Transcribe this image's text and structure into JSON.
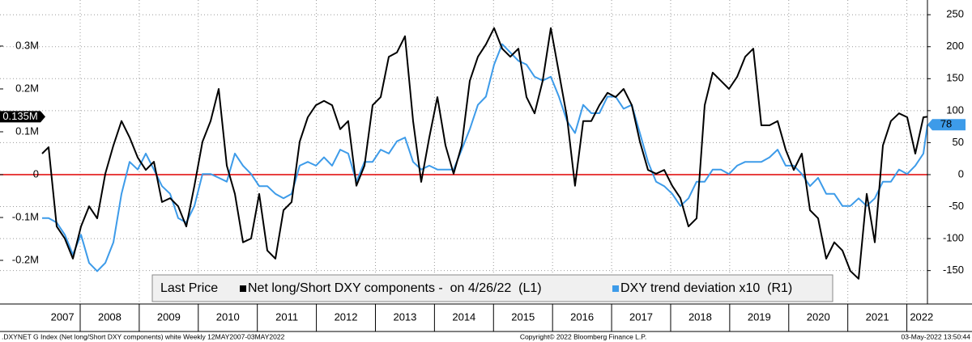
{
  "chart_data": {
    "type": "line",
    "legend_title": "Last Price",
    "footer": [
      ".DXYNET G Index (Net long/Short DXY components) white  Weekly 12MAY2007-03MAY2022",
      "Copyright© 2022 Bloomberg Finance L.P.",
      "03-May-2022 13:50:44"
    ],
    "x": [
      2007.355,
      2007.465,
      2007.602,
      2007.739,
      2007.877,
      2008.014,
      2008.151,
      2008.288,
      2008.425,
      2008.562,
      2008.7,
      2008.837,
      2008.974,
      2009.111,
      2009.248,
      2009.385,
      2009.523,
      2009.66,
      2009.797,
      2009.934,
      2010.071,
      2010.208,
      2010.346,
      2010.483,
      2010.62,
      2010.757,
      2010.894,
      2011.032,
      2011.169,
      2011.306,
      2011.443,
      2011.58,
      2011.717,
      2011.855,
      2011.992,
      2012.129,
      2012.266,
      2012.403,
      2012.54,
      2012.678,
      2012.815,
      2012.952,
      2013.089,
      2013.226,
      2013.364,
      2013.501,
      2013.638,
      2013.775,
      2013.912,
      2014.049,
      2014.187,
      2014.324,
      2014.461,
      2014.598,
      2014.735,
      2014.872,
      2015.01,
      2015.147,
      2015.284,
      2015.421,
      2015.558,
      2015.696,
      2015.833,
      2015.97,
      2016.107,
      2016.244,
      2016.381,
      2016.519,
      2016.656,
      2016.793,
      2016.93,
      2017.067,
      2017.204,
      2017.342,
      2017.479,
      2017.616,
      2017.753,
      2017.89,
      2018.027,
      2018.165,
      2018.302,
      2018.439,
      2018.576,
      2018.713,
      2018.851,
      2018.988,
      2019.125,
      2019.262,
      2019.399,
      2019.536,
      2019.674,
      2019.811,
      2019.948,
      2020.085,
      2020.222,
      2020.36,
      2020.497,
      2020.634,
      2020.771,
      2020.908,
      2021.045,
      2021.183,
      2021.32,
      2021.457,
      2021.594,
      2021.731,
      2021.868,
      2022.006,
      2022.143,
      2022.28,
      2022.349
    ],
    "series": [
      {
        "name": "Net long/Short DXY components -  on 4/26/22  (L1)",
        "color": "#000000",
        "axis": "y",
        "last_label": "0.135M",
        "values": [
          0.049,
          0.064,
          -0.121,
          -0.149,
          -0.196,
          -0.121,
          -0.074,
          -0.102,
          0.002,
          0.068,
          0.125,
          0.087,
          0.04,
          0.011,
          0.03,
          -0.064,
          -0.055,
          -0.074,
          -0.121,
          -0.026,
          0.077,
          0.125,
          0.2,
          0.021,
          -0.045,
          -0.158,
          -0.149,
          -0.045,
          -0.177,
          -0.196,
          -0.083,
          -0.064,
          0.077,
          0.134,
          0.162,
          0.172,
          0.162,
          0.106,
          0.125,
          -0.026,
          0.021,
          0.162,
          0.181,
          0.275,
          0.285,
          0.323,
          0.125,
          -0.017,
          0.087,
          0.181,
          0.068,
          0.002,
          0.068,
          0.219,
          0.275,
          0.304,
          0.342,
          0.294,
          0.275,
          0.294,
          0.181,
          0.143,
          0.219,
          0.342,
          0.238,
          0.134,
          -0.026,
          0.125,
          0.125,
          0.162,
          0.191,
          0.181,
          0.2,
          0.162,
          0.077,
          0.011,
          0.002,
          0.011,
          -0.026,
          -0.055,
          -0.121,
          -0.102,
          0.162,
          0.238,
          0.219,
          0.2,
          0.228,
          0.275,
          0.294,
          0.115,
          0.115,
          0.125,
          0.058,
          0.011,
          0.049,
          -0.083,
          -0.102,
          -0.196,
          -0.158,
          -0.177,
          -0.225,
          -0.243,
          -0.045,
          -0.158,
          0.068,
          0.125,
          0.143,
          0.134,
          0.049,
          0.134,
          0.135
        ]
      },
      {
        "name": "DXY trend deviation x10  (R1)",
        "color": "#3d9be9",
        "axis": "y2",
        "last_label": "78",
        "values": [
          -68,
          -68,
          -75,
          -94,
          -125,
          -94,
          -138,
          -151,
          -138,
          -106,
          -30,
          20,
          8,
          33,
          8,
          -18,
          -30,
          -68,
          -75,
          -49,
          1,
          1,
          -5,
          -11,
          33,
          14,
          1,
          -18,
          -18,
          -30,
          -37,
          -30,
          14,
          20,
          14,
          27,
          14,
          39,
          33,
          -11,
          20,
          20,
          39,
          33,
          52,
          58,
          20,
          8,
          14,
          8,
          8,
          8,
          39,
          71,
          109,
          122,
          172,
          204,
          191,
          178,
          172,
          153,
          147,
          153,
          122,
          84,
          65,
          109,
          96,
          96,
          122,
          122,
          103,
          109,
          65,
          20,
          -11,
          -18,
          -30,
          -49,
          -37,
          -11,
          -11,
          8,
          8,
          1,
          14,
          20,
          20,
          20,
          27,
          39,
          14,
          14,
          1,
          -18,
          -5,
          -30,
          -30,
          -49,
          -49,
          -37,
          -49,
          -37,
          -11,
          -11,
          8,
          1,
          14,
          33,
          78
        ]
      }
    ],
    "xlim": [
      2006.642,
      2022.349
    ],
    "xticks": [
      {
        "value": 2007.7,
        "label": "2007"
      },
      {
        "value": 2008.5,
        "label": "2008"
      },
      {
        "value": 2009.5,
        "label": "2009"
      },
      {
        "value": 2010.5,
        "label": "2010"
      },
      {
        "value": 2011.5,
        "label": "2011"
      },
      {
        "value": 2012.5,
        "label": "2012"
      },
      {
        "value": 2013.5,
        "label": "2013"
      },
      {
        "value": 2014.5,
        "label": "2014"
      },
      {
        "value": 2015.5,
        "label": "2015"
      },
      {
        "value": 2016.5,
        "label": "2016"
      },
      {
        "value": 2017.5,
        "label": "2017"
      },
      {
        "value": 2018.5,
        "label": "2018"
      },
      {
        "value": 2019.5,
        "label": "2019"
      },
      {
        "value": 2020.5,
        "label": "2020"
      },
      {
        "value": 2021.5,
        "label": "2021"
      },
      {
        "value": 2022.25,
        "label": "2022"
      }
    ],
    "xgrid": [
      2008,
      2009,
      2010,
      2011,
      2012,
      2013,
      2014,
      2015,
      2016,
      2017,
      2018,
      2019,
      2020,
      2021,
      2022
    ],
    "ylim": [
      -0.3,
      0.4075
    ],
    "yticks": [
      {
        "value": -0.2,
        "label": "-0.2M"
      },
      {
        "value": -0.1,
        "label": "-0.1M"
      },
      0,
      {
        "value": 0.1,
        "label": "0.1M"
      },
      {
        "value": 0.2,
        "label": "0.2M"
      },
      {
        "value": 0.3,
        "label": "0.3M"
      }
    ],
    "y2lim": [
      -201,
      273
    ],
    "y2ticks": [
      -150,
      -100,
      -50,
      0,
      50,
      100,
      150,
      200,
      250
    ],
    "grid": true,
    "zero_line_color": "#e00000"
  }
}
